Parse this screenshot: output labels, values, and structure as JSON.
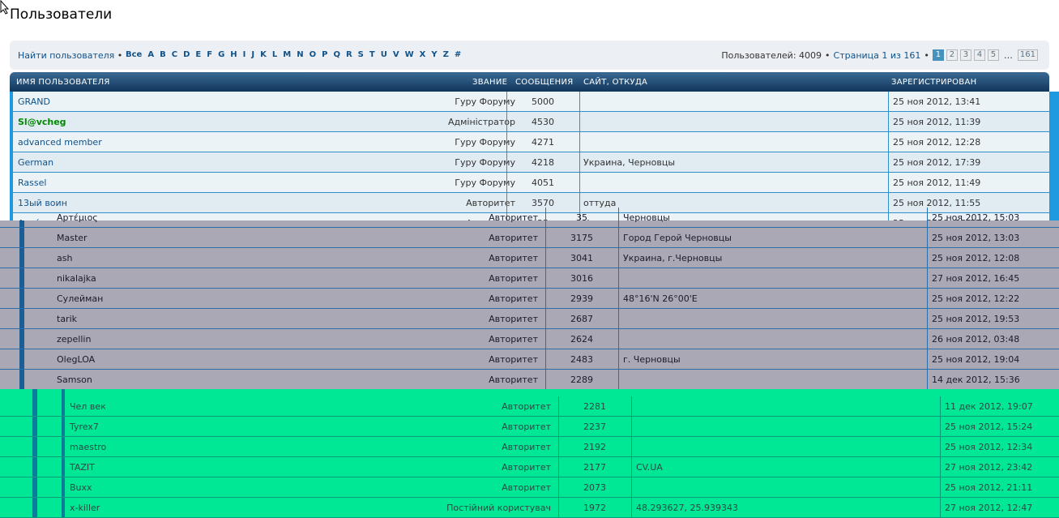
{
  "page": {
    "title": "Пользователи"
  },
  "topbar": {
    "find_user": "Найти пользователя",
    "bullet": "•",
    "letters": [
      "Все",
      "A",
      "B",
      "C",
      "D",
      "E",
      "F",
      "G",
      "H",
      "I",
      "J",
      "K",
      "L",
      "M",
      "N",
      "O",
      "P",
      "Q",
      "R",
      "S",
      "T",
      "U",
      "V",
      "W",
      "X",
      "Y",
      "Z",
      "#"
    ],
    "users_count": "Пользователей: 4009",
    "page_info": "Страница 1 из 161",
    "pages": [
      "1",
      "2",
      "3",
      "4",
      "5"
    ],
    "ellipsis": "…",
    "last_page": "161"
  },
  "table": {
    "headers": {
      "username": "Имя пользователя",
      "rank": "Звание",
      "posts": "Сообщения",
      "site": "Сайт, откуда",
      "joined": "Зарегистрирован"
    },
    "rows": [
      {
        "name": "GRAND",
        "rank": "Гуру Форуму",
        "posts": "5000",
        "site": "",
        "joined": "25 ноя 2012, 13:41"
      },
      {
        "name": "Sl@vcheg",
        "rank": "Адміністратор",
        "posts": "4530",
        "site": "",
        "joined": "25 ноя 2012, 11:39"
      },
      {
        "name": "advanced member",
        "rank": "Гуру Форуму",
        "posts": "4271",
        "site": "",
        "joined": "25 ноя 2012, 12:28"
      },
      {
        "name": "German",
        "rank": "Гуру Форуму",
        "posts": "4218",
        "site": "Украина, Черновцы",
        "joined": "25 ноя 2012, 17:39"
      },
      {
        "name": "Rassel",
        "rank": "Гуру Форуму",
        "posts": "4051",
        "site": "",
        "joined": "25 ноя 2012, 11:49"
      },
      {
        "name": "13ый воин",
        "rank": "Авторитет",
        "posts": "3570",
        "site": "оттуда",
        "joined": "25 ноя 2012, 11:55"
      },
      {
        "name": "Артέμιος",
        "rank": "Авторитет",
        "posts": "35",
        "site": "Черновцы",
        "joined": "25 ноя 2012, 15:03"
      },
      {
        "name": "Master",
        "rank": "Авторитет",
        "posts": "3175",
        "site": "Город Герой Черновцы",
        "joined": "25 ноя 2012, 13:03"
      },
      {
        "name": "ash",
        "rank": "Авторитет",
        "posts": "3041",
        "site": "Украина, г.Черновцы",
        "joined": "25 ноя 2012, 12:08"
      },
      {
        "name": "nikalajka",
        "rank": "Авторитет",
        "posts": "3016",
        "site": "",
        "joined": "27 ноя 2012, 16:45"
      },
      {
        "name": "Сулейман",
        "rank": "Авторитет",
        "posts": "2939",
        "site": "48°16'N 26°00'E",
        "joined": "25 ноя 2012, 12:22"
      },
      {
        "name": "tarik",
        "rank": "Авторитет",
        "posts": "2687",
        "site": "",
        "joined": "25 ноя 2012, 19:53"
      },
      {
        "name": "zepellin",
        "rank": "Авторитет",
        "posts": "2624",
        "site": "",
        "joined": "26 ноя 2012, 03:48"
      },
      {
        "name": "OlegLOA",
        "rank": "Авторитет",
        "posts": "2483",
        "site": "г. Черновцы",
        "joined": "25 ноя 2012, 19:04"
      },
      {
        "name": "Samson",
        "rank": "Авторитет",
        "posts": "2289",
        "site": "",
        "joined": "14 дек 2012, 15:36"
      },
      {
        "name": "Чел век",
        "rank": "Авторитет",
        "posts": "2281",
        "site": "",
        "joined": "11 дек 2012, 19:07"
      },
      {
        "name": "Tyrex7",
        "rank": "Авторитет",
        "posts": "2237",
        "site": "",
        "joined": "25 ноя 2012, 15:24"
      },
      {
        "name": "maestro",
        "rank": "Авторитет",
        "posts": "2192",
        "site": "",
        "joined": "25 ноя 2012, 12:34"
      },
      {
        "name": "TAZIT",
        "rank": "Авторитет",
        "posts": "2177",
        "site": "CV.UA",
        "joined": "27 ноя 2012, 23:42"
      },
      {
        "name": "Buxx",
        "rank": "Авторитет",
        "posts": "2073",
        "site": "",
        "joined": "25 ноя 2012, 21:11"
      },
      {
        "name": "x-killer",
        "rank": "Постійний користувач",
        "posts": "1972",
        "site": "48.293627, 25.939343",
        "joined": "27 ноя 2012, 12:47"
      }
    ]
  },
  "colors": {
    "link": "#105289",
    "admin": "#008a00",
    "header": "#11365b",
    "band1": "#1e9ae0",
    "band2": "#a9a8b4",
    "band3": "#00e896"
  },
  "icons": [
    "mouse-cursor-icon"
  ]
}
